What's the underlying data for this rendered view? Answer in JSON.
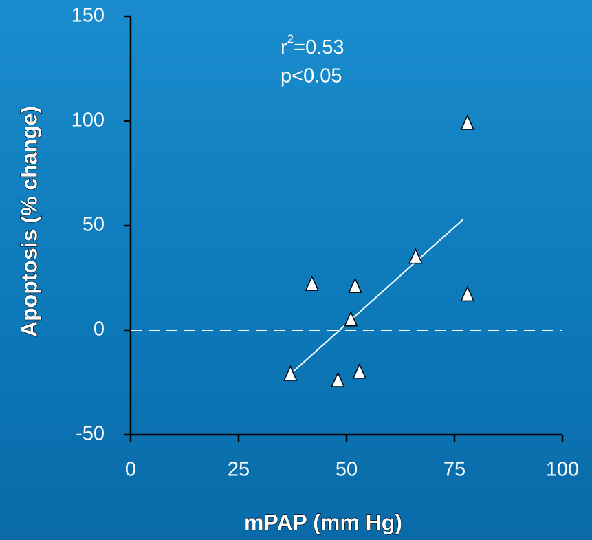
{
  "chart_data": {
    "type": "scatter",
    "x_label": "mPAP (mm Hg)",
    "y_label": "Apoptosis (% change)",
    "annotation_r2": [
      "r",
      "2",
      "=0.53"
    ],
    "annotation_p": "p<0.05",
    "series": [
      {
        "color": "#ffffff",
        "x": [
          78,
          66,
          78,
          42,
          52,
          51,
          37,
          48,
          53
        ],
        "values": [
          99,
          35,
          17,
          22,
          21,
          5,
          -21,
          -24,
          -20
        ]
      }
    ],
    "fit": {
      "x": [
        37,
        77
      ],
      "y": [
        -21,
        53
      ]
    },
    "hline": 0,
    "xlim": [
      0,
      100
    ],
    "xticks": [
      0,
      25,
      50,
      75,
      100
    ],
    "ylim": [
      -50,
      150
    ],
    "yticks": [
      -50,
      0,
      50,
      100,
      150
    ]
  }
}
